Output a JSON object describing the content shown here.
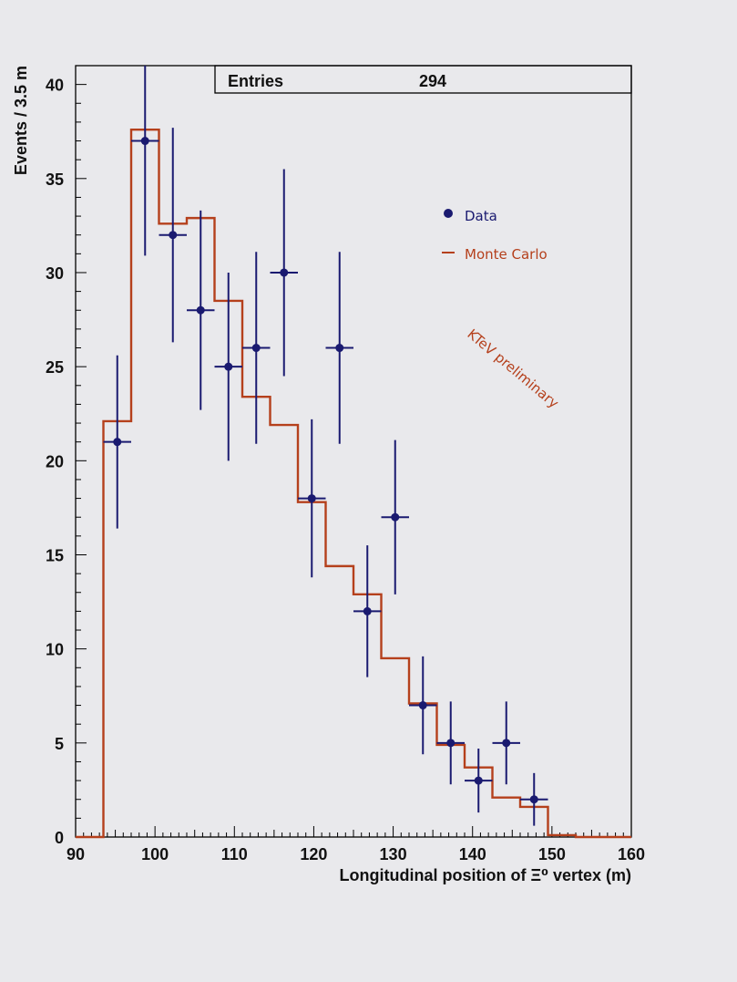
{
  "stats_box": {
    "label": "Entries",
    "value": "294"
  },
  "annotation": "KTeV preliminary",
  "colors": {
    "data": "#1a1a70",
    "monte_carlo": "#b5401c",
    "frame": "#000000",
    "background": "#e9e9ec"
  },
  "chart_data": {
    "type": "line",
    "title": "",
    "xlabel": "Longitudinal position of Ξ⁰ vertex (m)",
    "ylabel": "Events / 3.5 m",
    "xlim": [
      90,
      160
    ],
    "ylim": [
      0,
      41
    ],
    "xticks": [
      "90",
      "100",
      "110",
      "120",
      "130",
      "140",
      "150",
      "160"
    ],
    "yticks": [
      "0",
      "5",
      "10",
      "15",
      "20",
      "25",
      "30",
      "35",
      "40"
    ],
    "legend_placement": "right",
    "grid": false,
    "series": [
      {
        "name": "Data",
        "style": "points-with-errorbars",
        "x": [
          95.25,
          98.75,
          102.25,
          105.75,
          109.25,
          112.75,
          116.25,
          119.75,
          123.25,
          126.75,
          130.25,
          133.75,
          137.25,
          140.75,
          144.25,
          147.75
        ],
        "values": [
          21,
          37,
          32,
          28,
          25,
          26,
          30,
          18,
          26,
          12,
          17,
          7,
          5,
          3,
          5,
          2
        ],
        "x_halfwidth": 1.75,
        "y_error": [
          4.6,
          6.1,
          5.7,
          5.3,
          5.0,
          5.1,
          5.5,
          4.2,
          5.1,
          3.5,
          4.1,
          2.6,
          2.2,
          1.7,
          2.2,
          1.4
        ]
      },
      {
        "name": "Monte Carlo",
        "style": "step-histogram",
        "bin_edges": [
          90,
          93.5,
          97,
          100.5,
          104,
          107.5,
          111,
          114.5,
          118,
          121.5,
          125,
          128.5,
          132,
          135.5,
          139,
          142.5,
          146,
          149.5,
          153,
          156.5,
          160
        ],
        "values": [
          0,
          22.1,
          37.6,
          32.6,
          32.9,
          28.5,
          23.4,
          21.9,
          17.8,
          14.4,
          12.9,
          9.5,
          7.1,
          4.9,
          3.7,
          2.1,
          1.6,
          0.1,
          0,
          0
        ]
      }
    ]
  }
}
